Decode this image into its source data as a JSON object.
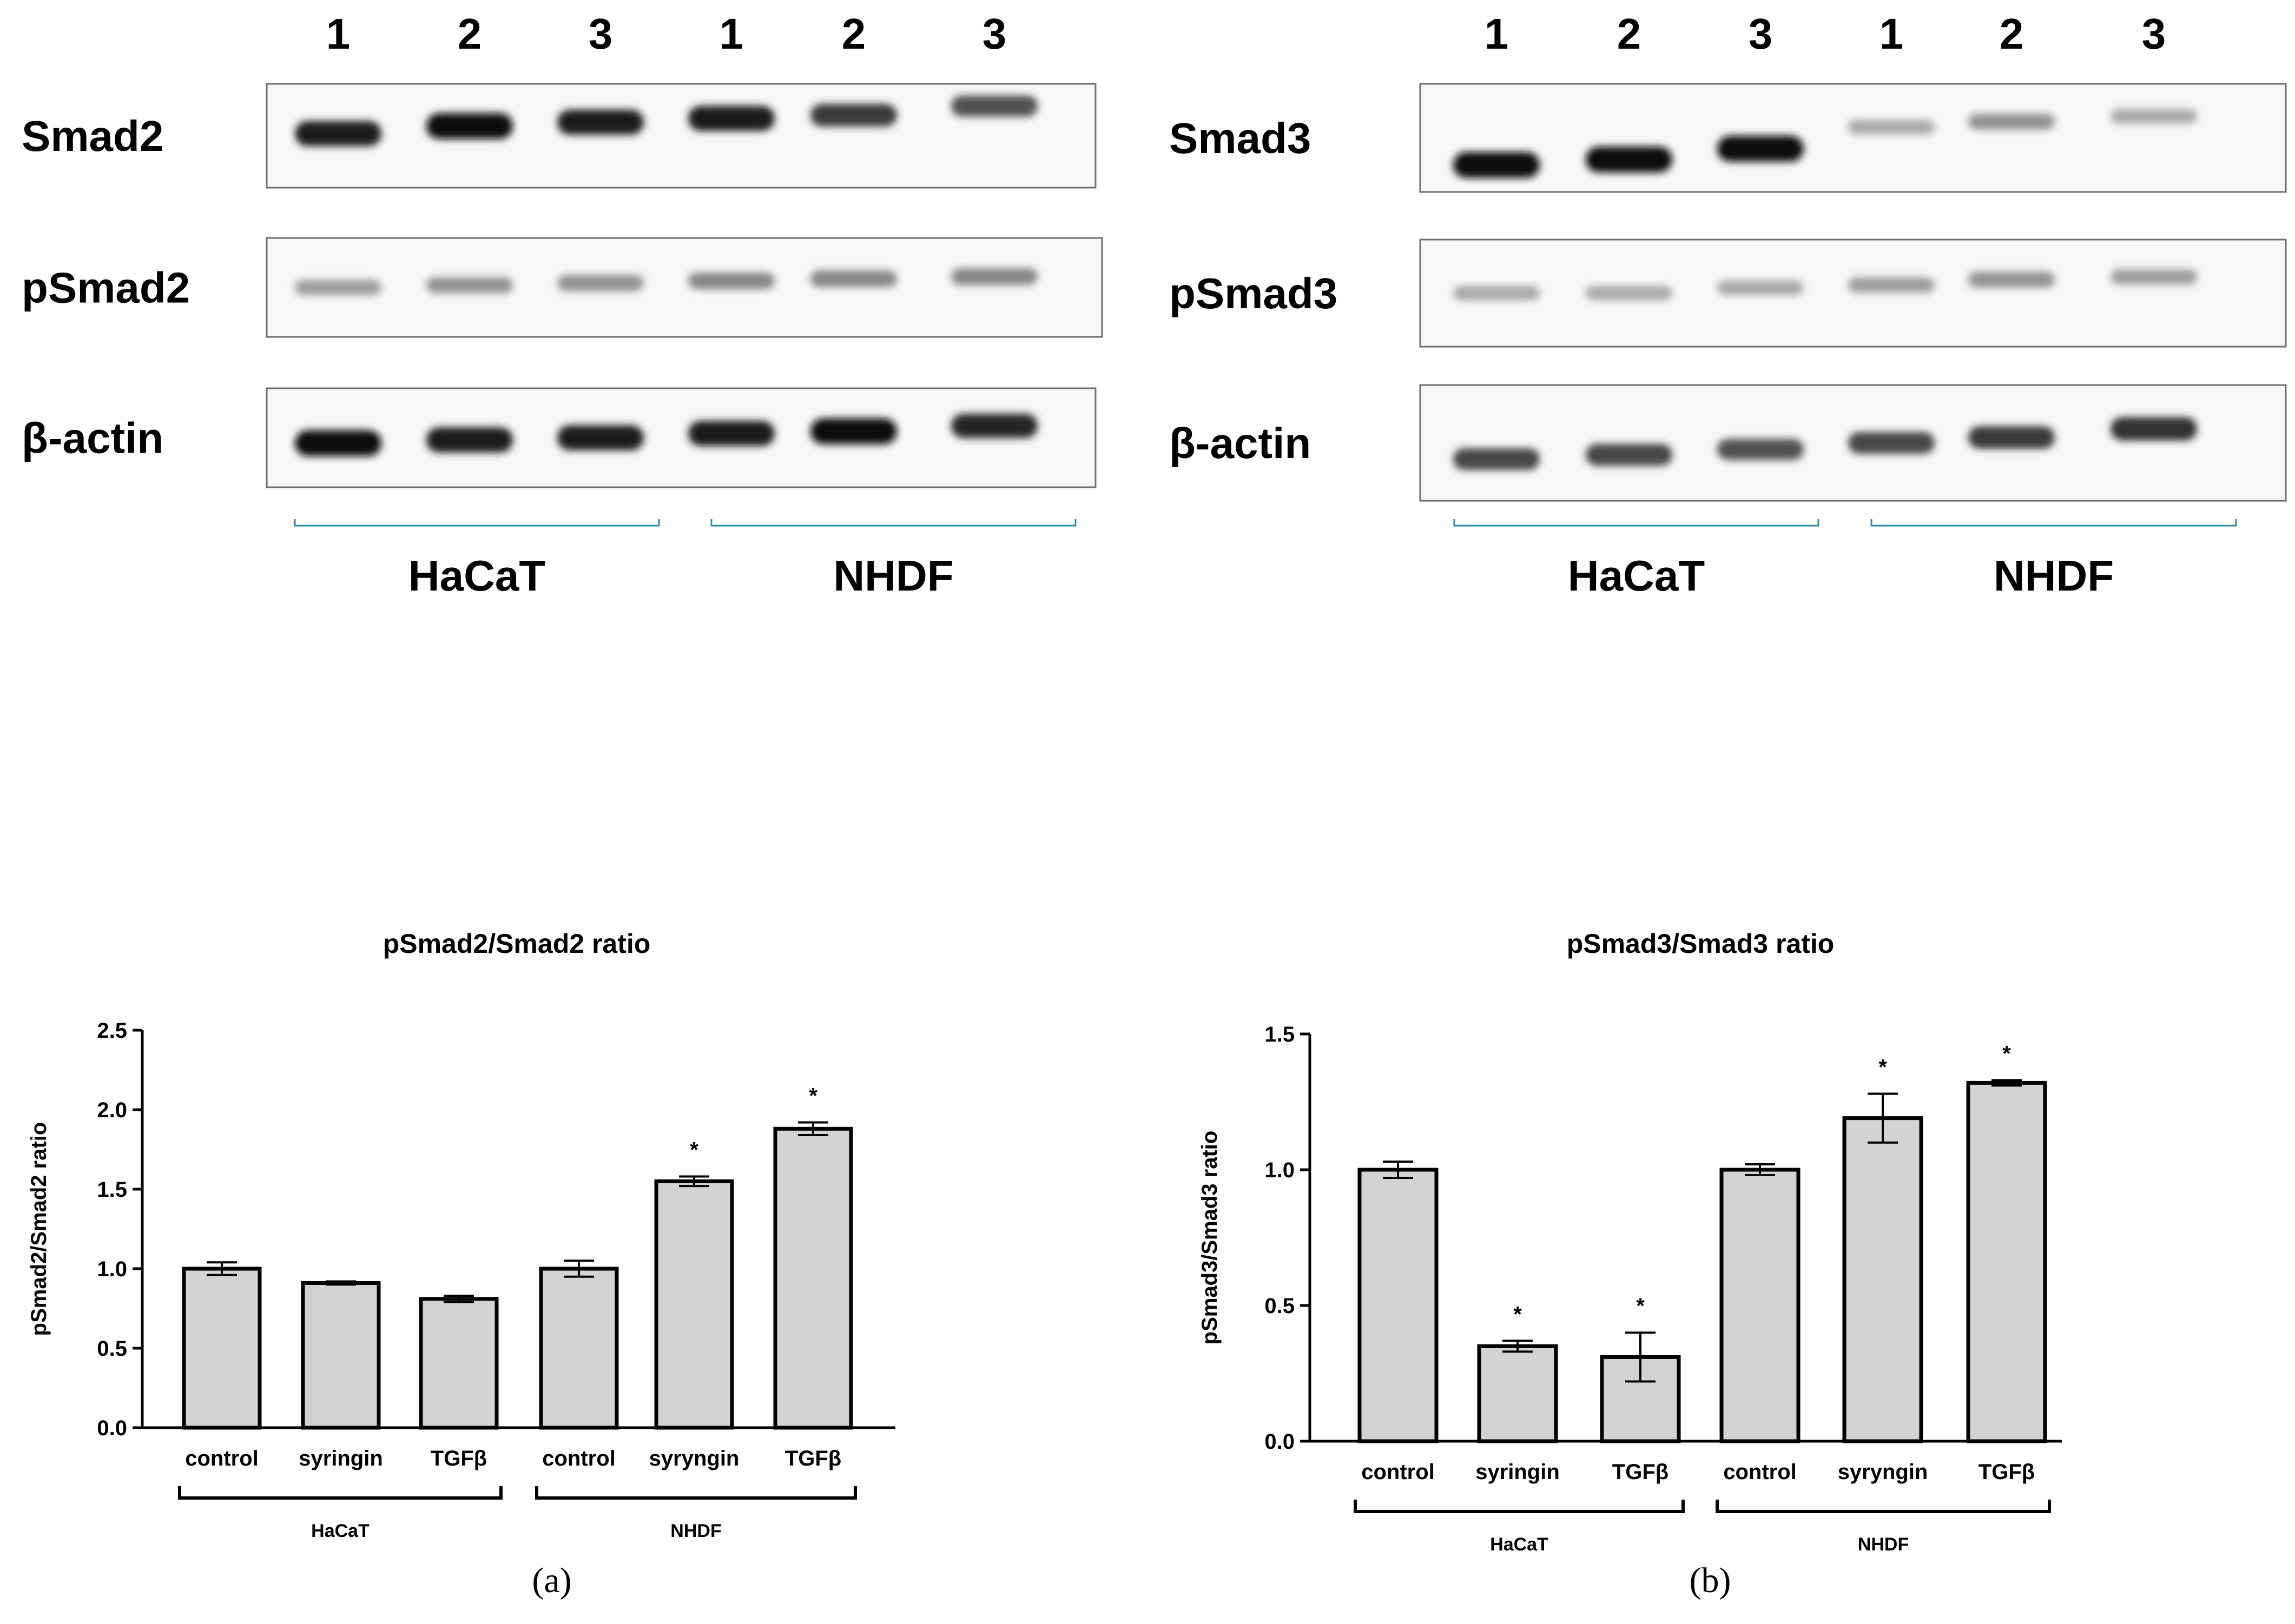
{
  "panels": [
    {
      "caption": "(a)",
      "blot": {
        "lane_labels": [
          "1",
          "2",
          "3",
          "1",
          "2",
          "3"
        ],
        "rows": [
          {
            "label": "Smad2",
            "intensity": [
              0.95,
              1.0,
              0.95,
              0.95,
              0.8,
              0.7
            ]
          },
          {
            "label": "pSmad2",
            "intensity": [
              0.35,
              0.4,
              0.4,
              0.45,
              0.45,
              0.45
            ]
          },
          {
            "label": "β-actin",
            "intensity": [
              1.0,
              0.95,
              0.95,
              0.95,
              1.0,
              0.9
            ]
          }
        ],
        "groups": [
          "HaCaT",
          "NHDF"
        ]
      },
      "chart_data": {
        "type": "bar",
        "title": "pSmad2/Smad2 ratio",
        "ylabel": "pSmad2/Smad2 ratio",
        "ylim": [
          0,
          2.5
        ],
        "yticks": [
          "0.0",
          "0.5",
          "1.0",
          "1.5",
          "2.0",
          "2.5"
        ],
        "ytick_values": [
          0,
          0.5,
          1.0,
          1.5,
          2.0,
          2.5
        ],
        "categories": [
          "control",
          "syringin",
          "TGFβ",
          "control",
          "syryngin",
          "TGFβ"
        ],
        "values": [
          1.0,
          0.91,
          0.81,
          1.0,
          1.55,
          1.88
        ],
        "errors": [
          0.04,
          0.01,
          0.02,
          0.05,
          0.03,
          0.04
        ],
        "significance": [
          "",
          "",
          "",
          "",
          "*",
          "*"
        ],
        "groups": [
          {
            "label": "HaCaT",
            "start": 0,
            "end": 2
          },
          {
            "label": "NHDF",
            "start": 3,
            "end": 5
          }
        ],
        "bar_color": "#d3d3d3"
      }
    },
    {
      "caption": "(b)",
      "blot": {
        "lane_labels": [
          "1",
          "2",
          "3",
          "1",
          "2",
          "3"
        ],
        "rows": [
          {
            "label": "Smad3",
            "intensity": [
              1.0,
              1.0,
              1.0,
              0.3,
              0.4,
              0.3
            ]
          },
          {
            "label": "pSmad3",
            "intensity": [
              0.3,
              0.3,
              0.3,
              0.35,
              0.4,
              0.35
            ]
          },
          {
            "label": "β-actin",
            "intensity": [
              0.75,
              0.75,
              0.7,
              0.75,
              0.8,
              0.85
            ]
          }
        ],
        "groups": [
          "HaCaT",
          "NHDF"
        ]
      },
      "chart_data": {
        "type": "bar",
        "title": "pSmad3/Smad3 ratio",
        "ylabel": "pSmad3/Smad3 ratio",
        "ylim": [
          0,
          1.5
        ],
        "yticks": [
          "0.0",
          "0.5",
          "1.0",
          "1.5"
        ],
        "ytick_values": [
          0,
          0.5,
          1.0,
          1.5
        ],
        "categories": [
          "control",
          "syringin",
          "TGFβ",
          "control",
          "syryngin",
          "TGFβ"
        ],
        "values": [
          1.0,
          0.35,
          0.31,
          1.0,
          1.19,
          1.32
        ],
        "errors": [
          0.03,
          0.02,
          0.09,
          0.02,
          0.09,
          0.01
        ],
        "significance": [
          "",
          "*",
          "*",
          "",
          "*",
          "*"
        ],
        "groups": [
          {
            "label": "HaCaT",
            "start": 0,
            "end": 2
          },
          {
            "label": "NHDF",
            "start": 3,
            "end": 5
          }
        ],
        "bar_color": "#d3d3d3"
      }
    }
  ]
}
